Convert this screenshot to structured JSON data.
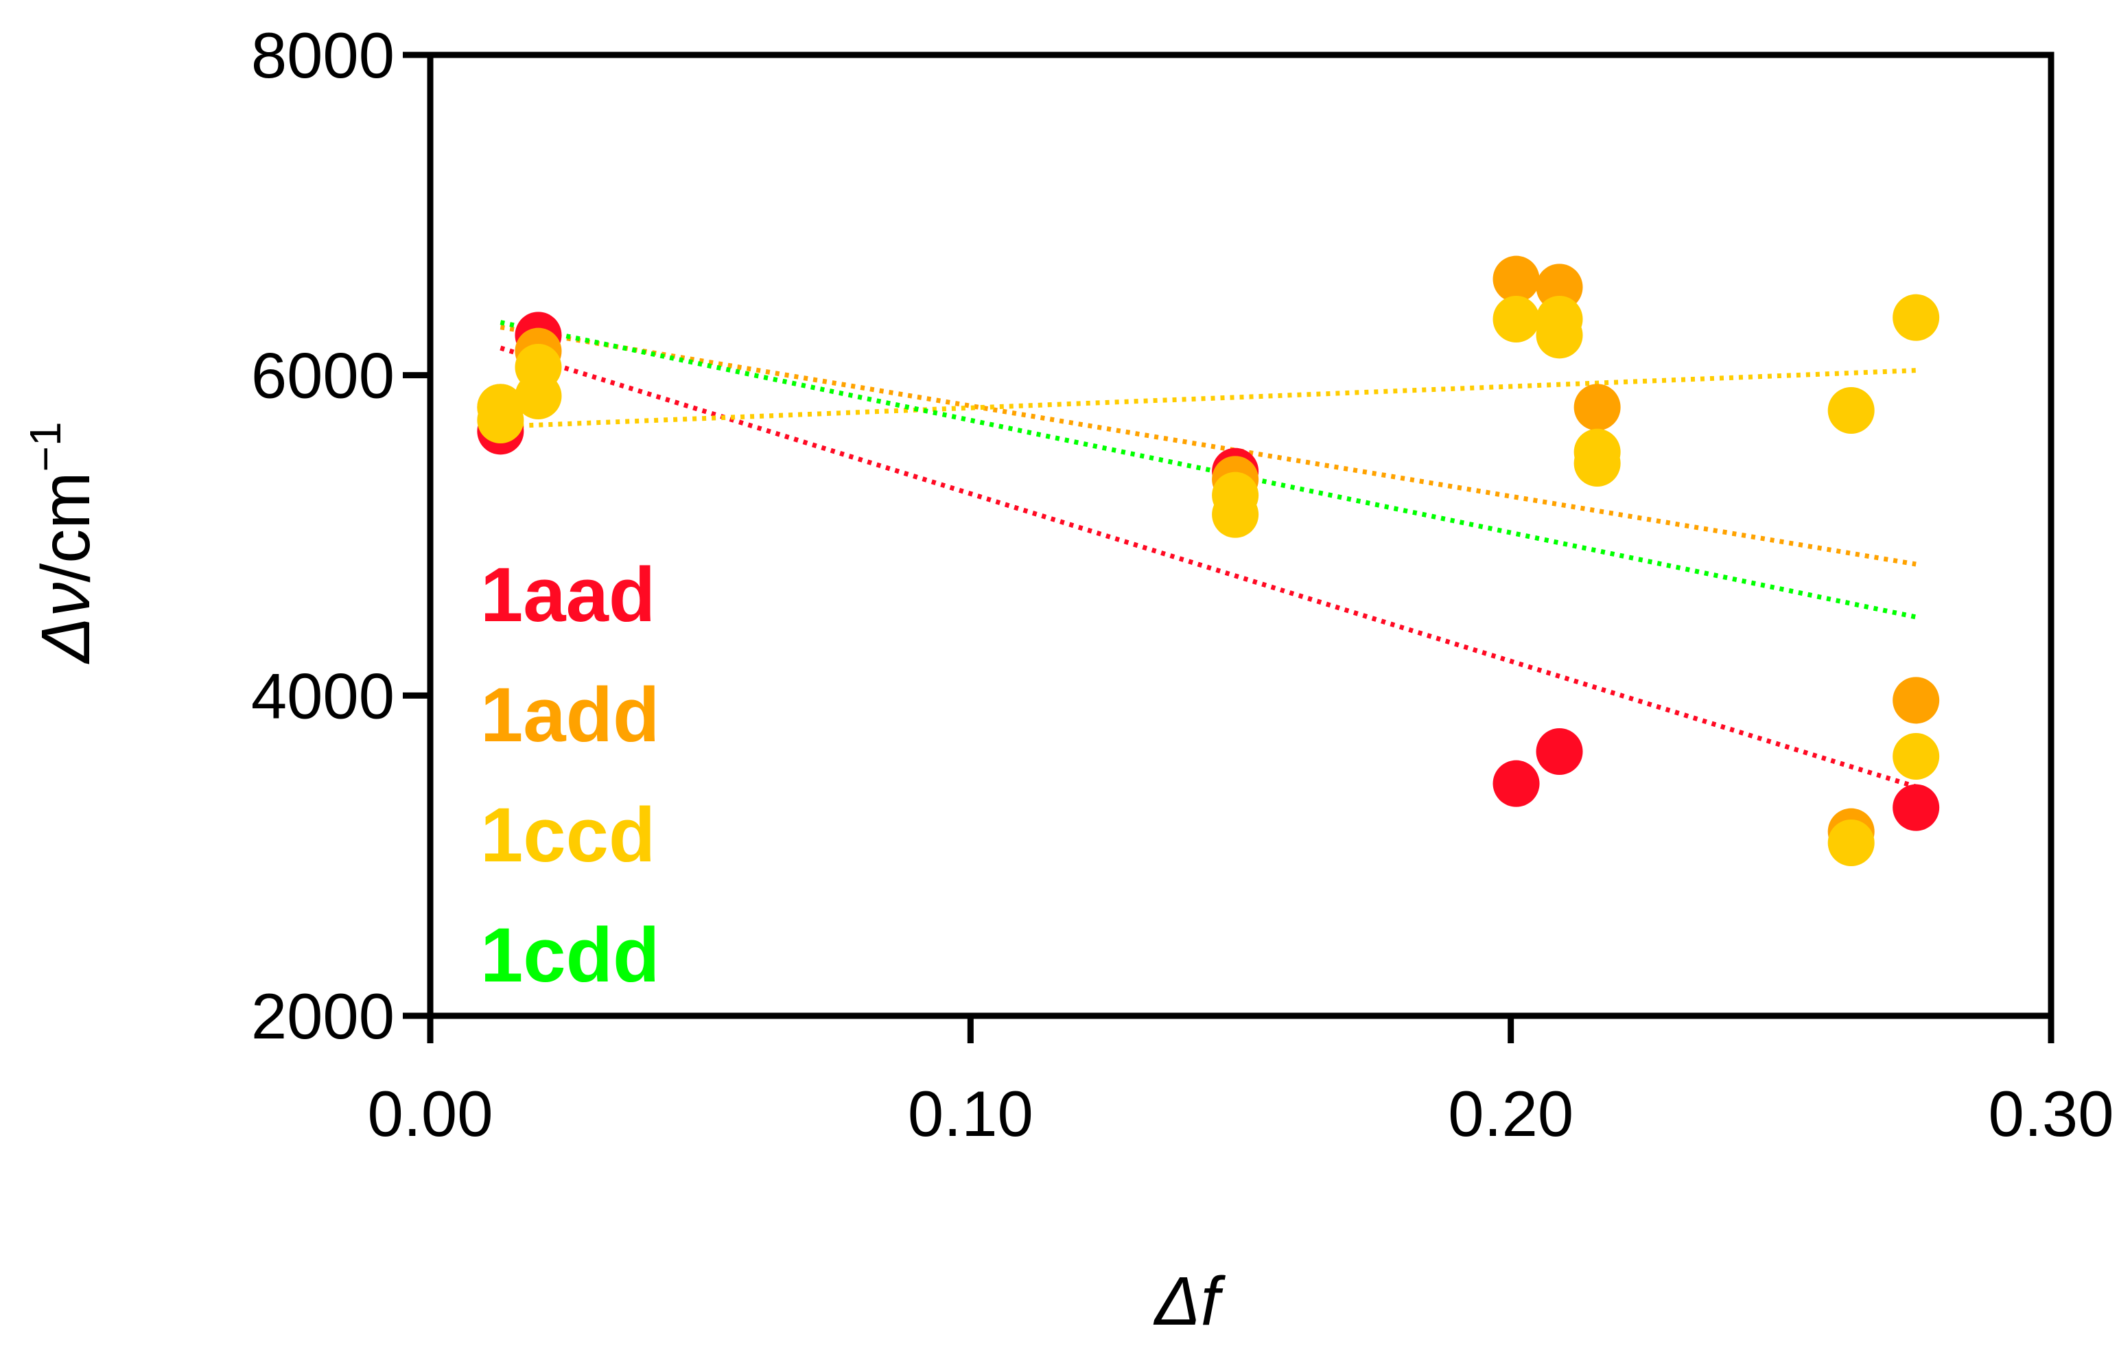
{
  "chart_data": {
    "type": "scatter",
    "title": "",
    "xlabel": "Δf",
    "ylabel_symbol": "Δν",
    "ylabel_unit": "/cm",
    "ylabel_exponent": "−1",
    "xlim": [
      0.0,
      0.3
    ],
    "ylim": [
      2000,
      8000
    ],
    "xticks": [
      0.0,
      0.1,
      0.2,
      0.3
    ],
    "xtick_labels": [
      "0.00",
      "0.10",
      "0.20",
      "0.30"
    ],
    "yticks": [
      2000,
      4000,
      6000,
      8000
    ],
    "ytick_labels": [
      "2000",
      "4000",
      "6000",
      "8000"
    ],
    "grid": false,
    "legend_position": "left",
    "series": [
      {
        "name": "1aad",
        "color": "#ff0a23",
        "x": [
          0.013,
          0.02,
          0.149,
          0.201,
          0.209,
          0.275
        ],
        "y": [
          5650,
          6250,
          5400,
          3450,
          3650,
          3300
        ],
        "trend": [
          [
            0.013,
            6170
          ],
          [
            0.275,
            3430
          ]
        ]
      },
      {
        "name": "1add",
        "color": "#ffa200",
        "x": [
          0.013,
          0.02,
          0.149,
          0.201,
          0.209,
          0.216,
          0.263,
          0.275
        ],
        "y": [
          5800,
          6150,
          5350,
          6600,
          6550,
          5800,
          3150,
          3970
        ],
        "trend": [
          [
            0.013,
            6300
          ],
          [
            0.275,
            4820
          ]
        ]
      },
      {
        "name": "1ccd",
        "color": "#ffcc00",
        "x": [
          0.013,
          0.013,
          0.02,
          0.02,
          0.149,
          0.149,
          0.201,
          0.209,
          0.209,
          0.216,
          0.216,
          0.263,
          0.263,
          0.275,
          0.275
        ],
        "y": [
          5800,
          5720,
          5870,
          6050,
          5250,
          5130,
          6350,
          6350,
          6250,
          5520,
          5450,
          5780,
          3080,
          6360,
          3620
        ],
        "trend": [
          [
            0.013,
            5680
          ],
          [
            0.275,
            6030
          ]
        ]
      },
      {
        "name": "1cdd",
        "color": "#00ff00",
        "x": [],
        "y": [],
        "trend": [
          [
            0.013,
            6330
          ],
          [
            0.275,
            4490
          ]
        ]
      }
    ]
  }
}
